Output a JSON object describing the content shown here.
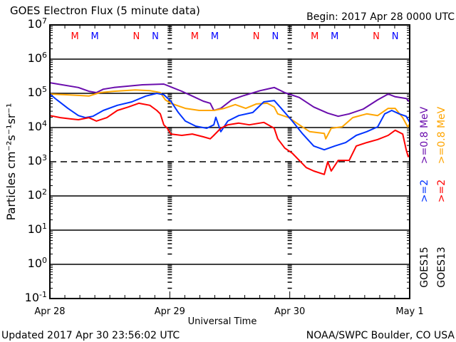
{
  "chart_data": {
    "type": "line",
    "title": "GOES Electron Flux (5 minute data)",
    "begin_label": "Begin: 2017 Apr 28 0000 UTC",
    "xlabel": "Universal Time",
    "ylabel": "Particles cm⁻²s⁻¹sr⁻¹",
    "x_unit": "hours since 2017 Apr 28 0000 UTC",
    "xlim": [
      0,
      72
    ],
    "x_ticks": [
      {
        "hour": 0,
        "label": "Apr 28"
      },
      {
        "hour": 24,
        "label": "Apr 29"
      },
      {
        "hour": 48,
        "label": "Apr 30"
      },
      {
        "hour": 72,
        "label": "May 1"
      }
    ],
    "y_scale": "log10",
    "ylim_log10": [
      -1,
      7
    ],
    "y_ticks": [
      {
        "exp": 7,
        "label": "7"
      },
      {
        "exp": 6,
        "label": "6"
      },
      {
        "exp": 5,
        "label": "5"
      },
      {
        "exp": 4,
        "label": "4"
      },
      {
        "exp": 3,
        "label": "3"
      },
      {
        "exp": 2,
        "label": "2"
      },
      {
        "exp": 1,
        "label": "1"
      },
      {
        "exp": 0,
        "label": "0"
      },
      {
        "exp": -1,
        "label": "-1"
      }
    ],
    "y_tick_base": "10",
    "solid_gridlines_log10": [
      6,
      5,
      4,
      2,
      1,
      0
    ],
    "dashed_threshold_log10": 3,
    "markers": [
      {
        "label": "M",
        "color": "#ff0000",
        "hour": 5.0
      },
      {
        "label": "M",
        "color": "#0000ff",
        "hour": 9.0
      },
      {
        "label": "N",
        "color": "#ff0000",
        "hour": 17.3
      },
      {
        "label": "N",
        "color": "#0000ff",
        "hour": 21.1
      },
      {
        "label": "M",
        "color": "#ff0000",
        "hour": 29.0
      },
      {
        "label": "M",
        "color": "#0000ff",
        "hour": 33.0
      },
      {
        "label": "N",
        "color": "#ff0000",
        "hour": 41.3
      },
      {
        "label": "N",
        "color": "#0000ff",
        "hour": 45.1
      },
      {
        "label": "M",
        "color": "#ff0000",
        "hour": 53.0
      },
      {
        "label": "M",
        "color": "#0000ff",
        "hour": 57.0
      },
      {
        "label": "N",
        "color": "#ff0000",
        "hour": 65.3
      },
      {
        "label": "N",
        "color": "#0000ff",
        "hour": 69.1
      }
    ],
    "legend": {
      "placement": "right, vertical",
      "groups": [
        {
          "satellite": "GOES15",
          "entries": [
            {
              "label": ">=0.8 MeV",
              "color": "#6a0dad"
            },
            {
              "label": ">=2",
              "color": "#0033ff"
            }
          ]
        },
        {
          "satellite": "GOES13",
          "entries": [
            {
              "label": ">=0.8 MeV",
              "color": "#ffa500"
            },
            {
              "label": ">=2",
              "color": "#ff0000"
            }
          ]
        }
      ]
    },
    "series": [
      {
        "name": "GOES15 >=0.8 MeV",
        "color": "#6a0dad",
        "hours": [
          0,
          5.7,
          7.8,
          9.3,
          10.7,
          12.8,
          18.5,
          22.8,
          24.2,
          26.4,
          28.5,
          30.7,
          32.1,
          32.8,
          34.2,
          36.4,
          38.5,
          42.1,
          44.9,
          47,
          49.9,
          52.8,
          55.6,
          57.7,
          59.9,
          62.7,
          65.6,
          67.7,
          69.1,
          71.3,
          72
        ],
        "log10_flux": [
          5.31,
          5.17,
          5.06,
          5.02,
          5.12,
          5.17,
          5.25,
          5.27,
          5.19,
          5.06,
          4.92,
          4.77,
          4.71,
          4.5,
          4.56,
          4.81,
          4.92,
          5.08,
          5.17,
          5.02,
          4.88,
          4.6,
          4.42,
          4.33,
          4.4,
          4.54,
          4.81,
          4.98,
          4.9,
          4.85,
          4.75
        ]
      },
      {
        "name": "GOES13 >=0.8 MeV",
        "color": "#ffa500",
        "hours": [
          0,
          2.9,
          5.7,
          7.8,
          10,
          12.8,
          17.1,
          20,
          22.1,
          23.1,
          24.2,
          27.1,
          29.9,
          32.8,
          34.9,
          37.1,
          39.2,
          41.3,
          43.5,
          44.9,
          45.6,
          47.8,
          49.9,
          52,
          54.9,
          55.2,
          56.3,
          58.5,
          60.6,
          63.4,
          65.6,
          67.7,
          69.1,
          70.6,
          71.6,
          72
        ],
        "log10_flux": [
          4.98,
          4.96,
          4.94,
          4.92,
          5.02,
          5.06,
          5.1,
          5.08,
          5.02,
          4.81,
          4.71,
          4.56,
          4.5,
          4.5,
          4.56,
          4.67,
          4.56,
          4.69,
          4.71,
          4.6,
          4.4,
          4.29,
          4.08,
          3.88,
          3.83,
          3.67,
          3.98,
          4.02,
          4.29,
          4.4,
          4.35,
          4.56,
          4.56,
          4.29,
          4.02,
          4.1
        ]
      },
      {
        "name": "GOES15 >=2 MeV",
        "color": "#0033ff",
        "hours": [
          0,
          1.4,
          3.6,
          5.7,
          7.1,
          8.6,
          10.7,
          13.5,
          16.4,
          19.2,
          21.4,
          22.8,
          24.2,
          25.7,
          27.1,
          29.2,
          31.4,
          32.8,
          33.2,
          34.2,
          35.6,
          37.8,
          40.6,
          42.8,
          44.9,
          46.3,
          48.5,
          50.6,
          52.8,
          54.9,
          57,
          59.2,
          61.3,
          63.4,
          65.6,
          67,
          68.4,
          69.9,
          71.3,
          72
        ],
        "log10_flux": [
          4.98,
          4.81,
          4.56,
          4.35,
          4.29,
          4.33,
          4.5,
          4.65,
          4.75,
          4.92,
          5.0,
          4.96,
          4.77,
          4.44,
          4.19,
          4.04,
          3.98,
          4.08,
          4.3,
          3.88,
          4.19,
          4.35,
          4.44,
          4.75,
          4.79,
          4.56,
          4.19,
          3.81,
          3.46,
          3.35,
          3.46,
          3.56,
          3.77,
          3.88,
          4.02,
          4.4,
          4.5,
          4.4,
          4.33,
          4.15
        ]
      },
      {
        "name": "GOES13 >=2 MeV",
        "color": "#ff0000",
        "hours": [
          0,
          2.1,
          4.3,
          5.7,
          7.8,
          9.3,
          11.4,
          13.5,
          15.7,
          17.8,
          20,
          21.4,
          22.1,
          22.8,
          23.5,
          24.2,
          26.4,
          28.5,
          30.7,
          32.1,
          32.8,
          34.2,
          35.6,
          37.8,
          39.9,
          42.8,
          44.9,
          45.6,
          47,
          48.5,
          49.9,
          51.3,
          52.8,
          54.9,
          55.6,
          56.3,
          57.7,
          59.9,
          61.3,
          63.4,
          65.6,
          67.7,
          69.1,
          70.6,
          71.3,
          71.7,
          72
        ],
        "log10_flux": [
          4.35,
          4.29,
          4.25,
          4.23,
          4.29,
          4.19,
          4.29,
          4.5,
          4.6,
          4.71,
          4.65,
          4.5,
          4.4,
          4.08,
          3.98,
          3.81,
          3.77,
          3.81,
          3.73,
          3.67,
          3.77,
          3.98,
          4.08,
          4.13,
          4.08,
          4.15,
          3.98,
          3.67,
          3.4,
          3.25,
          3.04,
          2.83,
          2.73,
          2.63,
          3.0,
          2.73,
          3.04,
          3.04,
          3.46,
          3.56,
          3.65,
          3.77,
          3.92,
          3.81,
          3.35,
          3.15,
          3.2
        ]
      }
    ]
  },
  "footer": {
    "updated": "Updated 2017 Apr 30 23:56:02 UTC",
    "credit": "NOAA/SWPC Boulder, CO USA"
  }
}
